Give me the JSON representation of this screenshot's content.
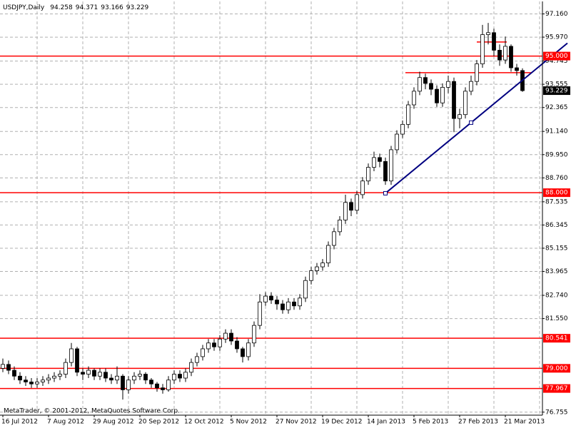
{
  "chart_data": {
    "type": "candlestick",
    "title": "USDJPY,Daily",
    "footer": "MetaTrader, © 2001-2012, MetaQuotes Software Corp.",
    "categories": [
      "16 Jul 2012",
      null,
      null,
      null,
      null,
      null,
      null,
      null,
      "7 Aug 2012",
      null,
      null,
      null,
      null,
      null,
      null,
      null,
      "29 Aug 2012",
      null,
      null,
      null,
      null,
      null,
      null,
      null,
      "20 Sep 2012",
      null,
      null,
      null,
      null,
      null,
      null,
      null,
      "12 Oct 2012",
      null,
      null,
      null,
      null,
      null,
      null,
      null,
      "5 Nov 2012",
      null,
      null,
      null,
      null,
      null,
      null,
      null,
      "27 Nov 2012",
      null,
      null,
      null,
      null,
      null,
      null,
      null,
      "19 Dec 2012",
      null,
      null,
      null,
      null,
      null,
      null,
      null,
      "14 Jan 2013",
      null,
      null,
      null,
      null,
      null,
      null,
      null,
      "5 Feb 2013",
      null,
      null,
      null,
      null,
      null,
      null,
      null,
      "27 Feb 2013",
      null,
      null,
      null,
      null,
      null,
      null,
      null,
      "21 Mar 2013",
      null,
      null,
      null
    ],
    "open": [
      79.0,
      79.2,
      78.9,
      78.6,
      78.4,
      78.3,
      78.2,
      78.3,
      78.4,
      78.5,
      78.6,
      78.7,
      79.3,
      80.0,
      78.8,
      78.7,
      78.9,
      78.6,
      78.8,
      78.5,
      78.4,
      78.6,
      77.9,
      78.4,
      78.6,
      78.7,
      78.4,
      78.2,
      78.0,
      77.9,
      78.4,
      78.7,
      78.5,
      78.8,
      79.3,
      79.6,
      80.0,
      80.3,
      80.1,
      80.5,
      80.8,
      80.4,
      80.0,
      79.6,
      80.3,
      81.2,
      82.4,
      82.7,
      82.5,
      82.3,
      82.0,
      82.4,
      82.2,
      82.6,
      83.5,
      84.0,
      84.2,
      84.4,
      85.3,
      86.0,
      86.6,
      87.5,
      87.1,
      87.9,
      88.6,
      89.3,
      89.8,
      89.6,
      88.6,
      90.2,
      91.0,
      91.5,
      92.5,
      93.2,
      93.9,
      93.6,
      93.3,
      92.6,
      93.4,
      93.7,
      91.8,
      92.0,
      93.2,
      93.7,
      94.6,
      96.1,
      96.2,
      95.3,
      94.8,
      95.5,
      94.4,
      94.258
    ],
    "high": [
      79.5,
      79.4,
      79.1,
      78.8,
      78.6,
      78.5,
      78.5,
      78.6,
      78.7,
      78.8,
      78.9,
      79.5,
      80.3,
      80.1,
      79.0,
      79.1,
      79.0,
      79.0,
      79.0,
      78.7,
      79.1,
      78.7,
      78.6,
      78.8,
      78.9,
      78.8,
      78.5,
      78.3,
      78.2,
      78.6,
      78.9,
      78.9,
      79.0,
      79.5,
      79.8,
      80.2,
      80.5,
      80.5,
      80.7,
      81.0,
      81.0,
      80.6,
      80.1,
      80.5,
      81.4,
      82.8,
      82.9,
      82.9,
      82.7,
      82.5,
      82.6,
      82.6,
      82.8,
      83.7,
      84.2,
      84.4,
      84.6,
      85.5,
      86.2,
      86.8,
      87.9,
      87.7,
      88.1,
      88.8,
      89.5,
      90.1,
      90.0,
      89.8,
      90.4,
      91.2,
      91.7,
      92.7,
      93.4,
      94.2,
      94.1,
      93.8,
      93.5,
      93.6,
      94.0,
      93.9,
      92.3,
      93.4,
      94.0,
      94.8,
      96.6,
      96.7,
      96.4,
      95.6,
      96.0,
      95.6,
      94.6,
      94.371
    ],
    "low": [
      78.8,
      78.7,
      78.4,
      78.2,
      78.1,
      78.0,
      78.0,
      78.1,
      78.2,
      78.3,
      78.4,
      78.5,
      79.1,
      78.6,
      78.4,
      78.5,
      78.4,
      78.4,
      78.3,
      78.2,
      78.2,
      77.4,
      77.7,
      78.2,
      78.4,
      78.2,
      78.0,
      77.8,
      77.7,
      77.8,
      78.2,
      78.3,
      78.3,
      78.6,
      79.1,
      79.4,
      79.8,
      79.9,
      79.9,
      80.3,
      80.2,
      79.8,
      79.3,
      79.4,
      80.1,
      81.0,
      82.2,
      82.3,
      82.0,
      81.8,
      81.8,
      82.0,
      82.0,
      82.4,
      83.3,
      83.8,
      84.0,
      84.2,
      85.1,
      85.8,
      86.4,
      86.8,
      86.9,
      87.7,
      88.4,
      89.1,
      89.3,
      88.4,
      88.4,
      90.0,
      90.8,
      91.3,
      92.3,
      93.0,
      93.3,
      93.0,
      92.4,
      92.4,
      93.1,
      91.1,
      91.3,
      91.8,
      93.0,
      93.5,
      94.4,
      95.6,
      95.0,
      94.5,
      94.6,
      94.2,
      94.0,
      93.166
    ],
    "close": [
      79.2,
      78.9,
      78.6,
      78.4,
      78.3,
      78.2,
      78.3,
      78.4,
      78.5,
      78.6,
      78.7,
      79.3,
      80.0,
      78.8,
      78.7,
      78.9,
      78.6,
      78.8,
      78.5,
      78.4,
      78.6,
      77.9,
      78.4,
      78.6,
      78.7,
      78.4,
      78.2,
      78.0,
      77.9,
      78.4,
      78.7,
      78.5,
      78.8,
      79.3,
      79.6,
      80.0,
      80.3,
      80.1,
      80.5,
      80.8,
      80.4,
      80.0,
      79.6,
      80.3,
      81.2,
      82.4,
      82.7,
      82.5,
      82.3,
      82.0,
      82.4,
      82.2,
      82.6,
      83.5,
      84.0,
      84.2,
      84.4,
      85.3,
      86.0,
      86.6,
      87.5,
      87.1,
      87.9,
      88.6,
      89.3,
      89.8,
      89.6,
      88.6,
      90.2,
      91.0,
      91.5,
      92.5,
      93.2,
      93.9,
      93.6,
      93.3,
      92.6,
      93.4,
      93.7,
      91.8,
      92.0,
      93.2,
      93.7,
      94.6,
      96.1,
      96.2,
      95.3,
      94.8,
      95.5,
      94.4,
      94.258,
      93.229
    ],
    "up_color": "#ffffff",
    "down_color": "#000000",
    "outline_color": "#000000",
    "ylim": [
      76.6,
      97.8
    ],
    "yticks": [
      {
        "value": 97.16,
        "label": "97.160"
      },
      {
        "value": 95.97,
        "label": "95.970"
      },
      {
        "value": 94.745,
        "label": "94.745"
      },
      {
        "value": 93.555,
        "label": "93.555"
      },
      {
        "value": 92.365,
        "label": "92.365"
      },
      {
        "value": 91.14,
        "label": "91.140"
      },
      {
        "value": 89.95,
        "label": "89.950"
      },
      {
        "value": 88.76,
        "label": "88.760"
      },
      {
        "value": 87.535,
        "label": "87.535"
      },
      {
        "value": 86.345,
        "label": "86.345"
      },
      {
        "value": 85.155,
        "label": "85.155"
      },
      {
        "value": 83.965,
        "label": "83.965"
      },
      {
        "value": 82.74,
        "label": "82.740"
      },
      {
        "value": 81.55,
        "label": "81.550"
      },
      {
        "value": 76.755,
        "label": "76.755"
      }
    ],
    "grid": true,
    "levels": [
      {
        "value": 95,
        "label": "95.000"
      },
      {
        "value": 88,
        "label": "88.000"
      },
      80.541,
      {
        "value": 79,
        "label": "79.000"
      },
      77.967
    ],
    "level_color": "#ff0000",
    "segments": [
      {
        "from": 70.5,
        "to": 92.6,
        "value": 94.15
      },
      {
        "from": 83,
        "to": 88.25,
        "value": 95.72
      }
    ],
    "trendline": {
      "points": [
        [
          67,
          87.97
        ],
        [
          82,
          91.59
        ]
      ],
      "color": "#000080"
    }
  }
}
